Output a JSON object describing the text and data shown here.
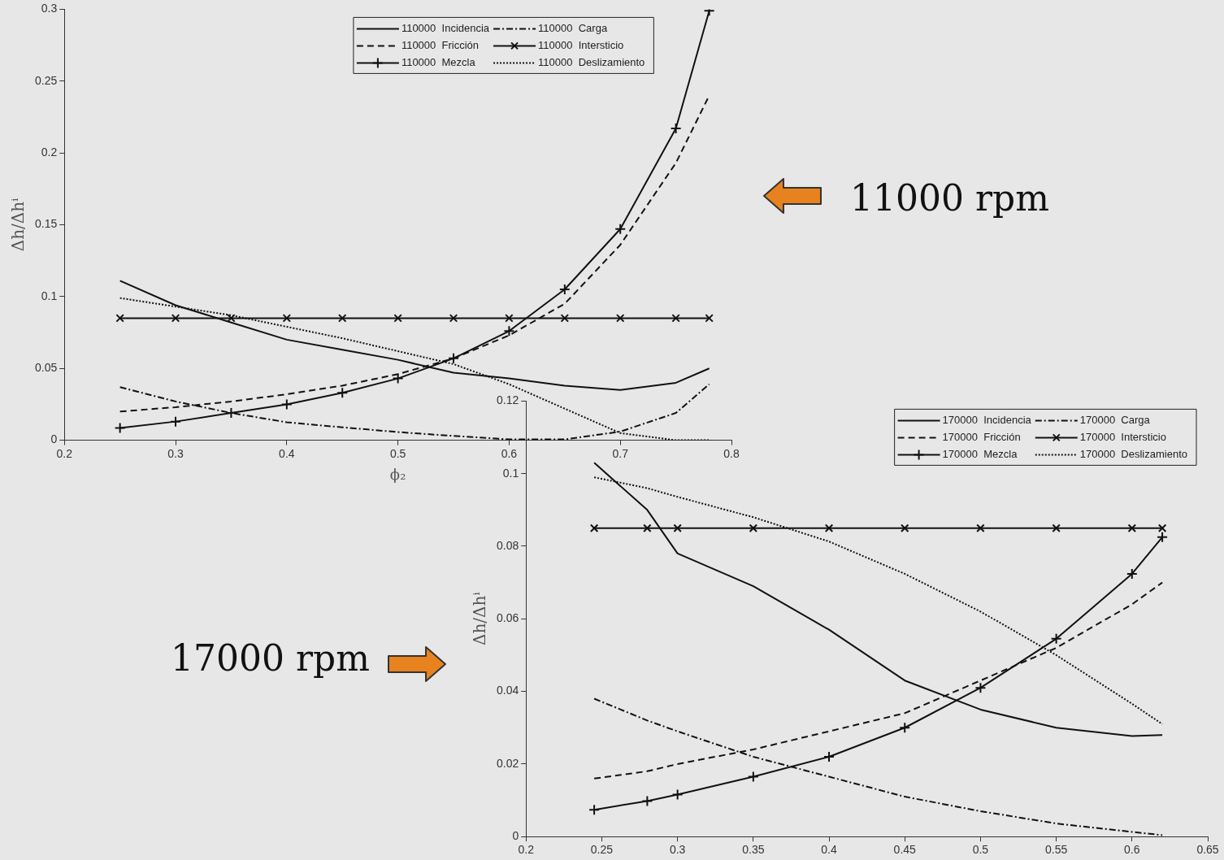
{
  "chart_data": [
    {
      "type": "line",
      "xlabel": "ϕ₂",
      "ylabel": "Δh/Δhⁱ",
      "xlim": [
        0.2,
        0.8
      ],
      "xticks": [
        0.2,
        0.3,
        0.4,
        0.5,
        0.6,
        0.7,
        0.8
      ],
      "ylim": [
        0,
        0.3
      ],
      "yticks": [
        0,
        0.05,
        0.1,
        0.15,
        0.2,
        0.25,
        0.3
      ],
      "legend": "top",
      "annotations": [
        "11000 rpm"
      ],
      "x": [
        0.25,
        0.3,
        0.35,
        0.4,
        0.45,
        0.5,
        0.55,
        0.6,
        0.65,
        0.7,
        0.75,
        0.78
      ],
      "series": [
        {
          "name": "110000  Incidencia",
          "color": "#111111",
          "line_style": "solid",
          "marker": "none",
          "values": [
            0.111,
            0.094,
            0.082,
            0.07,
            0.063,
            0.056,
            0.047,
            0.043,
            0.038,
            0.035,
            0.04,
            0.05
          ]
        },
        {
          "name": "110000  Fricción",
          "color": "#111111",
          "line_style": "dashed",
          "marker": "none",
          "values": [
            0.02,
            0.023,
            0.027,
            0.032,
            0.038,
            0.046,
            0.057,
            0.073,
            0.095,
            0.136,
            0.193,
            0.24
          ]
        },
        {
          "name": "110000  Mezcla",
          "color": "#111111",
          "line_style": "solid",
          "marker": "cross",
          "values": [
            0.0085,
            0.013,
            0.019,
            0.025,
            0.033,
            0.043,
            0.057,
            0.076,
            0.105,
            0.147,
            0.217,
            0.299
          ]
        },
        {
          "name": "110000  Carga",
          "color": "#111111",
          "line_style": "dashdot",
          "marker": "none",
          "values": [
            0.037,
            0.027,
            0.019,
            0.0125,
            0.009,
            0.0057,
            0.003,
            0.0006,
            0.0006,
            0.006,
            0.019,
            0.039
          ]
        },
        {
          "name": "110000  Intersticio",
          "color": "#111111",
          "line_style": "solid",
          "marker": "x",
          "values": [
            0.085,
            0.085,
            0.085,
            0.085,
            0.085,
            0.085,
            0.085,
            0.085,
            0.085,
            0.085,
            0.085,
            0.085
          ]
        },
        {
          "name": "110000  Deslizamiento",
          "color": "#111111",
          "line_style": "dotted",
          "marker": "none",
          "values": [
            0.099,
            0.093,
            0.087,
            0.079,
            0.071,
            0.062,
            0.053,
            0.039,
            0.022,
            0.005,
            0,
            0
          ]
        }
      ]
    },
    {
      "type": "line",
      "ylabel": "Δh/Δhⁱ",
      "xlim": [
        0.2,
        0.65
      ],
      "xticks": [
        0.2,
        0.25,
        0.3,
        0.35,
        0.4,
        0.45,
        0.5,
        0.55,
        0.6,
        0.65
      ],
      "ylim": [
        0,
        0.12
      ],
      "yticks": [
        0,
        0.02,
        0.04,
        0.06,
        0.08,
        0.1,
        0.12
      ],
      "legend": "top right",
      "annotations": [
        "17000 rpm"
      ],
      "x": [
        0.245,
        0.28,
        0.3,
        0.35,
        0.4,
        0.45,
        0.5,
        0.55,
        0.6,
        0.62
      ],
      "series": [
        {
          "name": "170000  Incidencia",
          "color": "#111111",
          "line_style": "solid",
          "marker": "none",
          "values": [
            0.103,
            0.09,
            0.078,
            0.069,
            0.057,
            0.043,
            0.035,
            0.03,
            0.0277,
            0.028
          ]
        },
        {
          "name": "170000  Fricción",
          "color": "#111111",
          "line_style": "dashed",
          "marker": "none",
          "values": [
            0.016,
            0.018,
            0.02,
            0.024,
            0.029,
            0.034,
            0.043,
            0.052,
            0.064,
            0.07
          ]
        },
        {
          "name": "170000  Mezcla",
          "color": "#111111",
          "line_style": "solid",
          "marker": "cross",
          "values": [
            0.0074,
            0.0098,
            0.0116,
            0.0165,
            0.022,
            0.03,
            0.041,
            0.0545,
            0.0724,
            0.0825
          ]
        },
        {
          "name": "170000  Carga",
          "color": "#111111",
          "line_style": "dashdot",
          "marker": "none",
          "values": [
            0.038,
            0.032,
            0.029,
            0.022,
            0.0165,
            0.011,
            0.007,
            0.0036,
            0.0013,
            0.0004
          ]
        },
        {
          "name": "170000  Intersticio",
          "color": "#111111",
          "line_style": "solid",
          "marker": "x",
          "values": [
            0.085,
            0.085,
            0.085,
            0.085,
            0.085,
            0.085,
            0.085,
            0.085,
            0.085,
            0.085
          ]
        },
        {
          "name": "170000  Deslizamiento",
          "color": "#111111",
          "line_style": "dotted",
          "marker": "none",
          "values": [
            0.099,
            0.096,
            0.0936,
            0.088,
            0.0813,
            0.0724,
            0.062,
            0.05,
            0.0366,
            0.031
          ]
        }
      ]
    }
  ]
}
